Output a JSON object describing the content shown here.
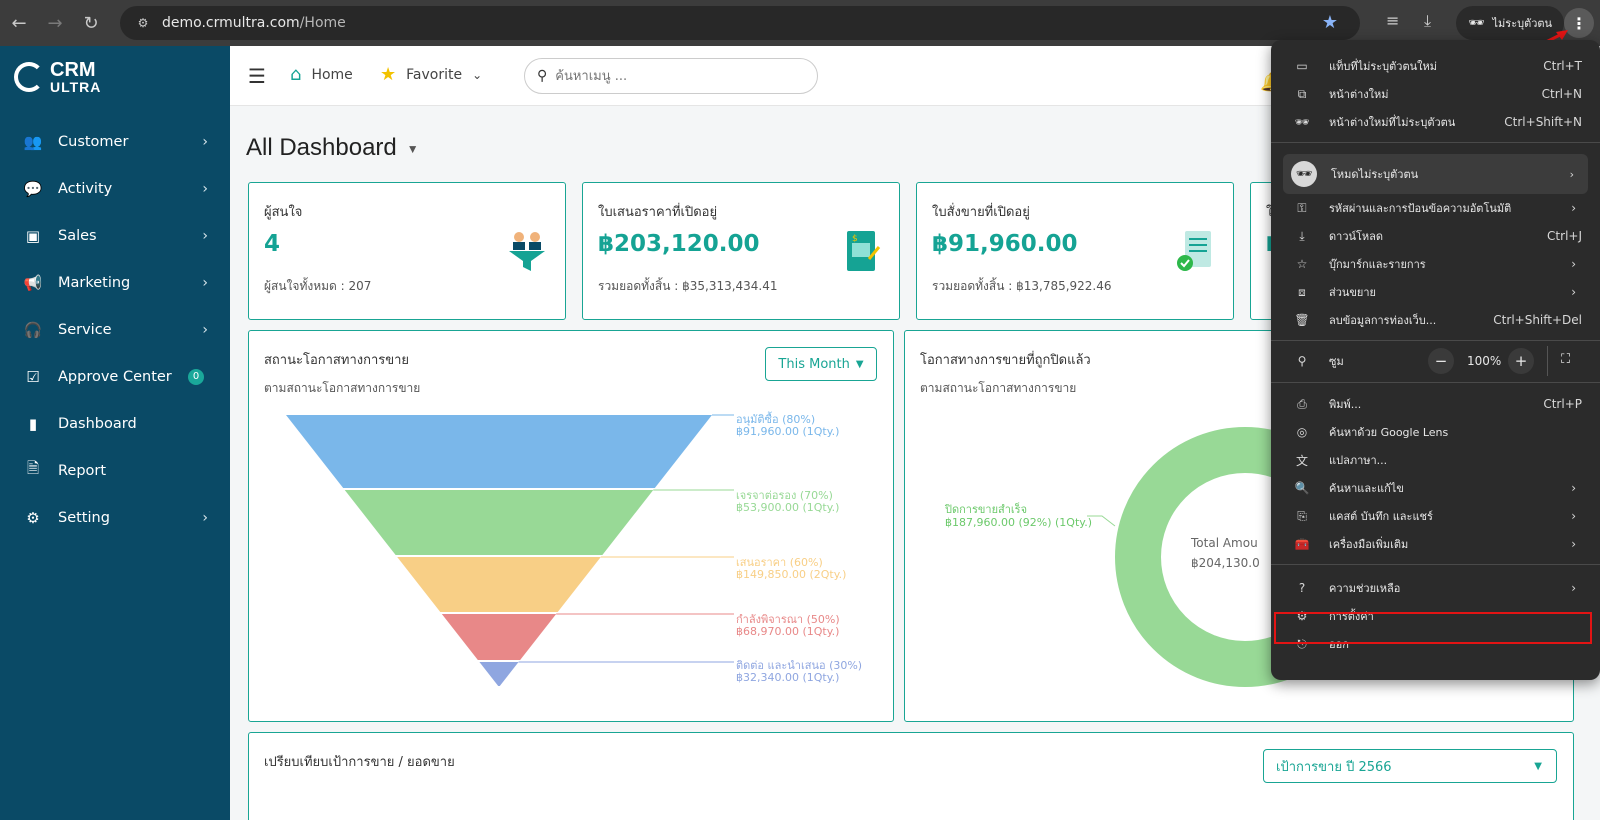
{
  "browser": {
    "url_domain": "demo.crmultra.com",
    "url_path": "/Home",
    "profile_label": "ไม่ระบุตัวตน"
  },
  "logo": {
    "line1": "CRM",
    "line2": "ULTRA"
  },
  "sidebar": {
    "items": [
      {
        "label": "Customer",
        "icon": "users-icon",
        "has_arrow": true
      },
      {
        "label": "Activity",
        "icon": "chat-icon",
        "has_arrow": true
      },
      {
        "label": "Sales",
        "icon": "cash-icon",
        "has_arrow": true
      },
      {
        "label": "Marketing",
        "icon": "megaphone-icon",
        "has_arrow": true
      },
      {
        "label": "Service",
        "icon": "headset-icon",
        "has_arrow": true
      },
      {
        "label": "Approve Center",
        "icon": "clipboard-check-icon",
        "badge": "0"
      },
      {
        "label": "Dashboard",
        "icon": "bar-chart-icon"
      },
      {
        "label": "Report",
        "icon": "document-icon"
      },
      {
        "label": "Setting",
        "icon": "gear-icon",
        "has_arrow": true
      }
    ]
  },
  "topbar": {
    "home_label": "Home",
    "favorite_label": "Favorite",
    "search_placeholder": "ค้นหาเมนู ..."
  },
  "page": {
    "title": "All Dashboard"
  },
  "stats": [
    {
      "title": "ผู้สนใจ",
      "value": "4",
      "sub": "ผู้สนใจทั้งหมด : 207",
      "icon": "people-funnel-icon"
    },
    {
      "title": "ใบเสนอราคาที่เปิดอยู่",
      "value": "฿203,120.00",
      "sub": "รวมยอดทั้งสิ้น : ฿35,313,434.41",
      "icon": "quotation-doc-icon"
    },
    {
      "title": "ใบสั่งขายที่เปิดอยู่",
      "value": "฿91,960.00",
      "sub": "รวมยอดทั้งสิ้น : ฿13,785,922.46",
      "icon": "sales-order-check-icon"
    },
    {
      "title": "ใ",
      "value": "฿",
      "sub": "",
      "icon": ""
    }
  ],
  "funnel_panel": {
    "title": "สถานะโอกาสทางการขาย",
    "subtitle": "ตามสถานะโอกาสทางการขาย",
    "period": "This Month"
  },
  "closed_panel": {
    "title": "โอกาสทางการขายที่ถูกปิดแล้ว",
    "subtitle": "ตามสถานะโอกาสทางการขาย",
    "center_label": "Total Amou",
    "center_value": "฿204,130.0",
    "slice_label_1": "ปิดการขายสำเร็จ",
    "slice_label_2": "฿187,960.00 (92%) (1Qty.)"
  },
  "target_panel": {
    "title": "เปรียบเทียบเป้าการขาย / ยอดขาย",
    "select_label": "เป้าการขาย ปี 2566"
  },
  "chart_data": [
    {
      "type": "funnel",
      "stages": [
        {
          "name": "อนุมัติซื้อ (80%)",
          "amount": "฿91,960.00 (1Qty.)",
          "value": 91960,
          "color": "#7ab7ea"
        },
        {
          "name": "เจรจาต่อรอง (70%)",
          "amount": "฿53,900.00 (1Qty.)",
          "value": 53900,
          "color": "#98d996"
        },
        {
          "name": "เสนอราคา (60%)",
          "amount": "฿149,850.00 (2Qty.)",
          "value": 149850,
          "color": "#f8cf86"
        },
        {
          "name": "กำลังพิจารณา (50%)",
          "amount": "฿68,970.00 (1Qty.)",
          "value": 68970,
          "color": "#e88888"
        },
        {
          "name": "ติดต่อ และนำเสนอ (30%)",
          "amount": "฿32,340.00 (1Qty.)",
          "value": 32340,
          "color": "#8fa6e0"
        }
      ]
    },
    {
      "type": "pie",
      "slices": [
        {
          "name": "ปิดการขายสำเร็จ",
          "value": 187960,
          "percent": 92,
          "color": "#98d996"
        }
      ]
    }
  ],
  "chrome_menu": {
    "items_top": [
      {
        "label": "แท็บที่ไม่ระบุตัวตนใหม่",
        "shortcut": "Ctrl+T",
        "icon": "new-tab-icon"
      },
      {
        "label": "หน้าต่างใหม่",
        "shortcut": "Ctrl+N",
        "icon": "new-window-icon"
      },
      {
        "label": "หน้าต่างใหม่ที่ไม่ระบุตัวตน",
        "shortcut": "Ctrl+Shift+N",
        "icon": "incognito-window-icon"
      }
    ],
    "incognito_label": "โหมดไม่ระบุตัวตน",
    "items_mid": [
      {
        "label": "รหัสผ่านและการป้อนข้อความอัตโนมัติ",
        "arrow": true,
        "icon": "key-icon"
      },
      {
        "label": "ดาวน์โหลด",
        "shortcut": "Ctrl+J",
        "icon": "download-icon"
      },
      {
        "label": "บุ๊กมาร์กและรายการ",
        "arrow": true,
        "icon": "star-outline-icon"
      },
      {
        "label": "ส่วนขยาย",
        "arrow": true,
        "icon": "puzzle-icon"
      },
      {
        "label": "ลบข้อมูลการท่องเว็บ...",
        "shortcut": "Ctrl+Shift+Del",
        "icon": "trash-icon"
      }
    ],
    "zoom_label": "ซูม",
    "zoom_value": "100%",
    "items_tools": [
      {
        "label": "พิมพ์...",
        "shortcut": "Ctrl+P",
        "icon": "printer-icon"
      },
      {
        "label": "ค้นหาด้วย Google Lens",
        "icon": "lens-icon"
      },
      {
        "label": "แปลภาษา...",
        "icon": "translate-icon"
      },
      {
        "label": "ค้นหาและแก้ไข",
        "arrow": true,
        "icon": "find-icon"
      },
      {
        "label": "แคสต์ บันทึก และแชร์",
        "arrow": true,
        "icon": "cast-icon"
      },
      {
        "label": "เครื่องมือเพิ่มเติม",
        "arrow": true,
        "icon": "toolbox-icon"
      }
    ],
    "items_bottom": [
      {
        "label": "ความช่วยเหลือ",
        "arrow": true,
        "icon": "help-icon"
      },
      {
        "label": "การตั้งค่า",
        "icon": "settings-icon"
      },
      {
        "label": "ออก",
        "icon": "exit-icon"
      }
    ]
  }
}
